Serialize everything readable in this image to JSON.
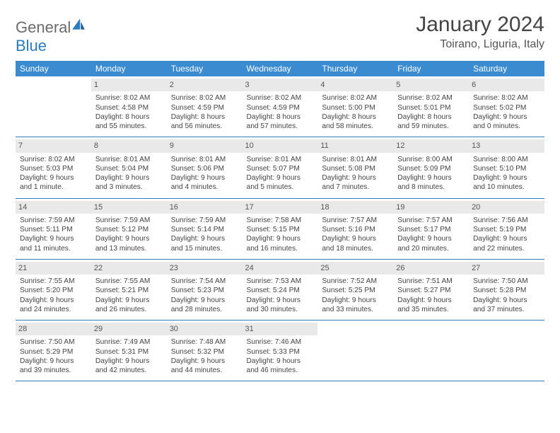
{
  "brand": {
    "part1": "General",
    "part2": "Blue"
  },
  "title": "January 2024",
  "location": "Toirano, Liguria, Italy",
  "colors": {
    "header_bg": "#3b8bd0",
    "header_text": "#ffffff",
    "divider": "#2b7bbf",
    "daynum_bg": "#e9e9e9",
    "text": "#444444",
    "brand_gray": "#6b6b6b",
    "brand_blue": "#2b7bbf"
  },
  "weekdays": [
    "Sunday",
    "Monday",
    "Tuesday",
    "Wednesday",
    "Thursday",
    "Friday",
    "Saturday"
  ],
  "weeks": [
    [
      null,
      {
        "d": "1",
        "sr": "Sunrise: 8:02 AM",
        "ss": "Sunset: 4:58 PM",
        "dl": "Daylight: 8 hours and 55 minutes."
      },
      {
        "d": "2",
        "sr": "Sunrise: 8:02 AM",
        "ss": "Sunset: 4:59 PM",
        "dl": "Daylight: 8 hours and 56 minutes."
      },
      {
        "d": "3",
        "sr": "Sunrise: 8:02 AM",
        "ss": "Sunset: 4:59 PM",
        "dl": "Daylight: 8 hours and 57 minutes."
      },
      {
        "d": "4",
        "sr": "Sunrise: 8:02 AM",
        "ss": "Sunset: 5:00 PM",
        "dl": "Daylight: 8 hours and 58 minutes."
      },
      {
        "d": "5",
        "sr": "Sunrise: 8:02 AM",
        "ss": "Sunset: 5:01 PM",
        "dl": "Daylight: 8 hours and 59 minutes."
      },
      {
        "d": "6",
        "sr": "Sunrise: 8:02 AM",
        "ss": "Sunset: 5:02 PM",
        "dl": "Daylight: 9 hours and 0 minutes."
      }
    ],
    [
      {
        "d": "7",
        "sr": "Sunrise: 8:02 AM",
        "ss": "Sunset: 5:03 PM",
        "dl": "Daylight: 9 hours and 1 minute."
      },
      {
        "d": "8",
        "sr": "Sunrise: 8:01 AM",
        "ss": "Sunset: 5:04 PM",
        "dl": "Daylight: 9 hours and 3 minutes."
      },
      {
        "d": "9",
        "sr": "Sunrise: 8:01 AM",
        "ss": "Sunset: 5:06 PM",
        "dl": "Daylight: 9 hours and 4 minutes."
      },
      {
        "d": "10",
        "sr": "Sunrise: 8:01 AM",
        "ss": "Sunset: 5:07 PM",
        "dl": "Daylight: 9 hours and 5 minutes."
      },
      {
        "d": "11",
        "sr": "Sunrise: 8:01 AM",
        "ss": "Sunset: 5:08 PM",
        "dl": "Daylight: 9 hours and 7 minutes."
      },
      {
        "d": "12",
        "sr": "Sunrise: 8:00 AM",
        "ss": "Sunset: 5:09 PM",
        "dl": "Daylight: 9 hours and 8 minutes."
      },
      {
        "d": "13",
        "sr": "Sunrise: 8:00 AM",
        "ss": "Sunset: 5:10 PM",
        "dl": "Daylight: 9 hours and 10 minutes."
      }
    ],
    [
      {
        "d": "14",
        "sr": "Sunrise: 7:59 AM",
        "ss": "Sunset: 5:11 PM",
        "dl": "Daylight: 9 hours and 11 minutes."
      },
      {
        "d": "15",
        "sr": "Sunrise: 7:59 AM",
        "ss": "Sunset: 5:12 PM",
        "dl": "Daylight: 9 hours and 13 minutes."
      },
      {
        "d": "16",
        "sr": "Sunrise: 7:59 AM",
        "ss": "Sunset: 5:14 PM",
        "dl": "Daylight: 9 hours and 15 minutes."
      },
      {
        "d": "17",
        "sr": "Sunrise: 7:58 AM",
        "ss": "Sunset: 5:15 PM",
        "dl": "Daylight: 9 hours and 16 minutes."
      },
      {
        "d": "18",
        "sr": "Sunrise: 7:57 AM",
        "ss": "Sunset: 5:16 PM",
        "dl": "Daylight: 9 hours and 18 minutes."
      },
      {
        "d": "19",
        "sr": "Sunrise: 7:57 AM",
        "ss": "Sunset: 5:17 PM",
        "dl": "Daylight: 9 hours and 20 minutes."
      },
      {
        "d": "20",
        "sr": "Sunrise: 7:56 AM",
        "ss": "Sunset: 5:19 PM",
        "dl": "Daylight: 9 hours and 22 minutes."
      }
    ],
    [
      {
        "d": "21",
        "sr": "Sunrise: 7:55 AM",
        "ss": "Sunset: 5:20 PM",
        "dl": "Daylight: 9 hours and 24 minutes."
      },
      {
        "d": "22",
        "sr": "Sunrise: 7:55 AM",
        "ss": "Sunset: 5:21 PM",
        "dl": "Daylight: 9 hours and 26 minutes."
      },
      {
        "d": "23",
        "sr": "Sunrise: 7:54 AM",
        "ss": "Sunset: 5:23 PM",
        "dl": "Daylight: 9 hours and 28 minutes."
      },
      {
        "d": "24",
        "sr": "Sunrise: 7:53 AM",
        "ss": "Sunset: 5:24 PM",
        "dl": "Daylight: 9 hours and 30 minutes."
      },
      {
        "d": "25",
        "sr": "Sunrise: 7:52 AM",
        "ss": "Sunset: 5:25 PM",
        "dl": "Daylight: 9 hours and 33 minutes."
      },
      {
        "d": "26",
        "sr": "Sunrise: 7:51 AM",
        "ss": "Sunset: 5:27 PM",
        "dl": "Daylight: 9 hours and 35 minutes."
      },
      {
        "d": "27",
        "sr": "Sunrise: 7:50 AM",
        "ss": "Sunset: 5:28 PM",
        "dl": "Daylight: 9 hours and 37 minutes."
      }
    ],
    [
      {
        "d": "28",
        "sr": "Sunrise: 7:50 AM",
        "ss": "Sunset: 5:29 PM",
        "dl": "Daylight: 9 hours and 39 minutes."
      },
      {
        "d": "29",
        "sr": "Sunrise: 7:49 AM",
        "ss": "Sunset: 5:31 PM",
        "dl": "Daylight: 9 hours and 42 minutes."
      },
      {
        "d": "30",
        "sr": "Sunrise: 7:48 AM",
        "ss": "Sunset: 5:32 PM",
        "dl": "Daylight: 9 hours and 44 minutes."
      },
      {
        "d": "31",
        "sr": "Sunrise: 7:46 AM",
        "ss": "Sunset: 5:33 PM",
        "dl": "Daylight: 9 hours and 46 minutes."
      },
      null,
      null,
      null
    ]
  ]
}
